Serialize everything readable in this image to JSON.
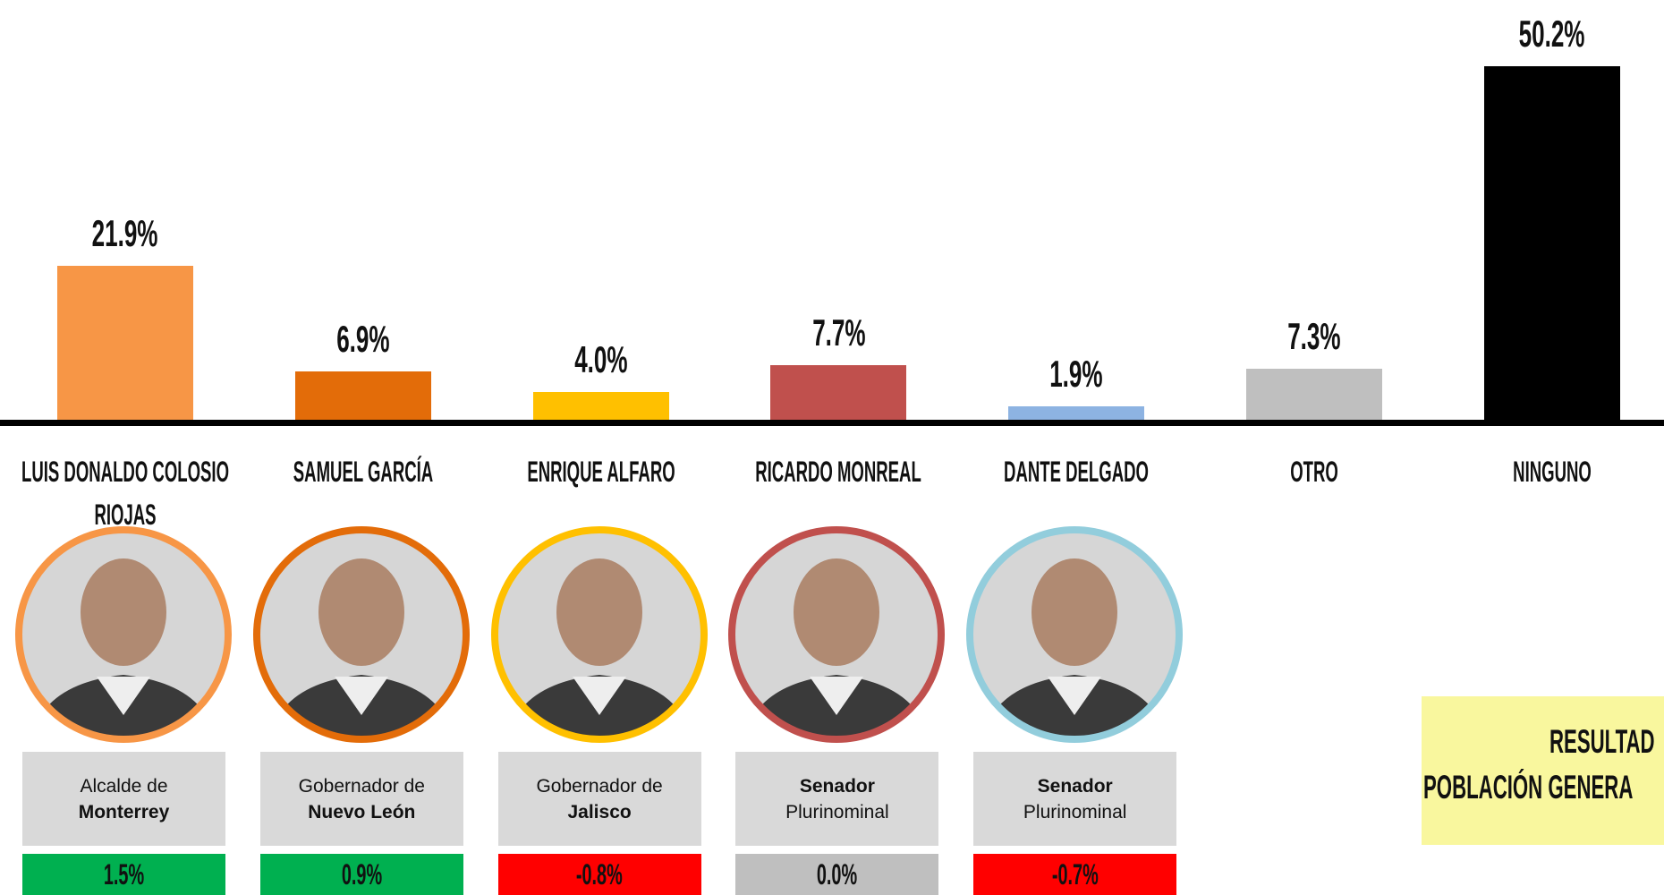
{
  "chart_data": {
    "type": "bar",
    "categories": [
      "LUIS DONALDO COLOSIO RIOJAS",
      "SAMUEL GARCÍA",
      "ENRIQUE ALFARO",
      "RICARDO MONREAL",
      "DANTE DELGADO",
      "OTRO",
      "NINGUNO"
    ],
    "values": [
      21.9,
      6.9,
      4.0,
      7.7,
      1.9,
      7.3,
      50.2
    ],
    "value_labels": [
      "21.9%",
      "6.9%",
      "4.0%",
      "7.7%",
      "1.9%",
      "7.3%",
      "50.2%"
    ],
    "colors": [
      "#f79646",
      "#e36c09",
      "#ffc000",
      "#c0504d",
      "#8db3e2",
      "#bfbfbf",
      "#000000"
    ]
  },
  "candidates": [
    {
      "ring_color": "#f79646",
      "role": [
        {
          "text": "Alcalde de",
          "bold": false
        },
        {
          "text": "Monterrey",
          "bold": true
        }
      ]
    },
    {
      "ring_color": "#e36c09",
      "role": [
        {
          "text": "Gobernador de",
          "bold": false
        },
        {
          "text": "Nuevo León",
          "bold": true
        }
      ]
    },
    {
      "ring_color": "#ffc000",
      "role": [
        {
          "text": "Gobernador de",
          "bold": false
        },
        {
          "text": "Jalisco",
          "bold": true
        }
      ]
    },
    {
      "ring_color": "#c0504d",
      "role": [
        {
          "text": "Senador",
          "bold": true
        },
        {
          "text": "Plurinominal",
          "bold": false
        }
      ]
    },
    {
      "ring_color": "#92cddc",
      "role": [
        {
          "text": "Senador",
          "bold": true
        },
        {
          "text": "Plurinominal",
          "bold": false
        }
      ]
    }
  ],
  "changes": {
    "values": [
      1.5,
      0.9,
      -0.8,
      0.0,
      -0.7
    ],
    "value_labels": [
      "1.5%",
      "0.9%",
      "-0.8%",
      "0.0%",
      "-0.7%"
    ],
    "colors": [
      "#00b050",
      "#00b050",
      "#ff0000",
      "#bfbfbf",
      "#ff0000"
    ]
  },
  "note": {
    "lines": [
      "RESULTAD",
      "POBLACIÓN GENERA"
    ]
  }
}
